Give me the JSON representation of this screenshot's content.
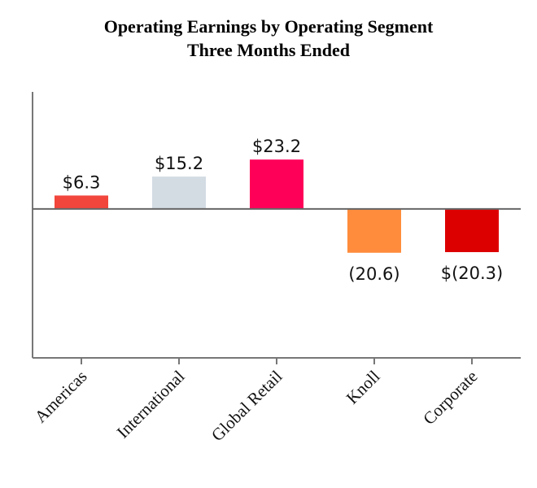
{
  "chart_data": {
    "type": "bar",
    "title": "Operating Earnings by Operating Segment",
    "subtitle": "Three Months Ended",
    "xlabel": "",
    "ylabel": "",
    "categories": [
      "Americas",
      "International",
      "Global Retail",
      "Knoll",
      "Corporate"
    ],
    "values": [
      6.3,
      15.2,
      23.2,
      -20.6,
      -20.3
    ],
    "data_labels": [
      "$6.3",
      "$15.2",
      "$23.2",
      "(20.6)",
      "$(20.3)"
    ],
    "colors": [
      "#f2453b",
      "#d3dbe3",
      "#ff0059",
      "#ff8c3c",
      "#dd0000"
    ],
    "ylim": [
      -70,
      55
    ],
    "grid": false,
    "legend": "none"
  }
}
